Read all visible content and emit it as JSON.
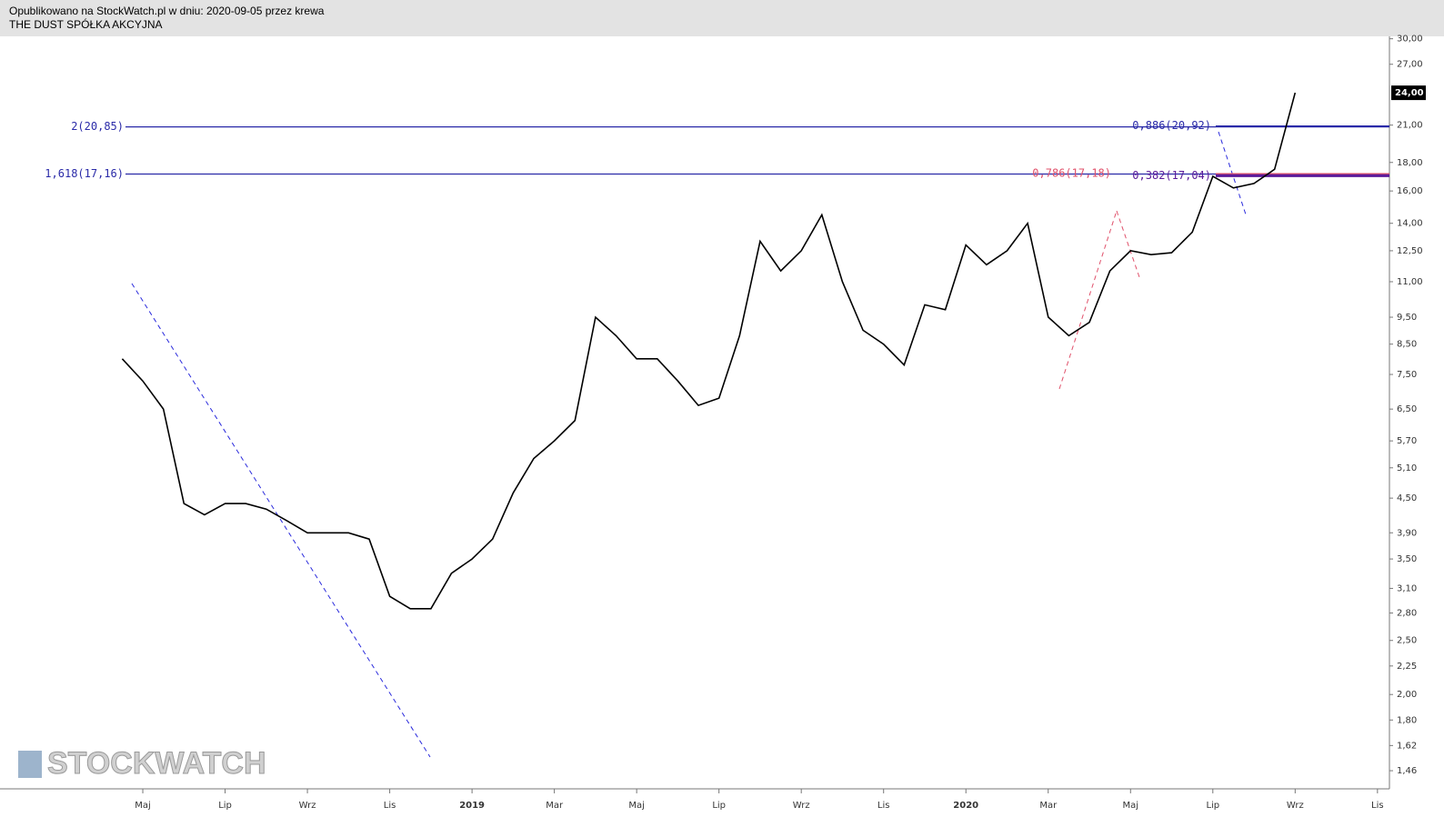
{
  "header": {
    "published": "Opublikowano na StockWatch.pl w dniu: 2020-09-05 przez krewa",
    "company": "THE DUST SPÓŁKA AKCYJNA"
  },
  "watermark": "STOCKWATCH",
  "chart_data": {
    "type": "line",
    "log_scale": true,
    "color": "#000000",
    "categories": [
      null,
      "Maj",
      null,
      null,
      null,
      "Lip",
      null,
      null,
      null,
      "Wrz",
      null,
      null,
      null,
      "Lis",
      null,
      null,
      null,
      "2019",
      null,
      null,
      null,
      "Mar",
      null,
      null,
      null,
      "Maj",
      null,
      null,
      null,
      "Lip",
      null,
      null,
      null,
      "Wrz",
      null,
      null,
      null,
      "Lis",
      null,
      null,
      null,
      "2020",
      null,
      null,
      null,
      "Mar",
      null,
      null,
      null,
      "Maj",
      null,
      null,
      null,
      "Lip",
      null,
      null,
      null,
      "Wrz",
      null,
      null,
      null,
      "Lis"
    ],
    "values": [
      8.0,
      7.3,
      6.5,
      4.4,
      4.2,
      4.4,
      4.4,
      4.3,
      4.1,
      3.9,
      3.9,
      3.9,
      3.8,
      3.0,
      2.85,
      2.85,
      3.3,
      3.5,
      3.8,
      4.6,
      5.3,
      5.7,
      6.2,
      9.5,
      8.8,
      8.0,
      8.0,
      7.3,
      6.6,
      6.8,
      8.8,
      13.0,
      11.5,
      12.5,
      14.5,
      11.0,
      9.0,
      8.5,
      7.8,
      10.0,
      9.8,
      12.8,
      11.8,
      12.5,
      14.0,
      9.5,
      8.8,
      9.3,
      11.5,
      12.5,
      12.3,
      12.4,
      13.5,
      17.0,
      16.2,
      16.5,
      17.5,
      24.0,
      null,
      null,
      null,
      null
    ],
    "ylim": [
      1.37,
      30.3
    ],
    "yticks": [
      {
        "value": 1.46,
        "label": "1,46"
      },
      {
        "value": 1.62,
        "label": "1,62"
      },
      {
        "value": 1.8,
        "label": "1,80"
      },
      {
        "value": 2,
        "label": "2,00"
      },
      {
        "value": 2.25,
        "label": "2,25"
      },
      {
        "value": 2.5,
        "label": "2,50"
      },
      {
        "value": 2.8,
        "label": "2,80"
      },
      {
        "value": 3.1,
        "label": "3,10"
      },
      {
        "value": 3.5,
        "label": "3,50"
      },
      {
        "value": 3.9,
        "label": "3,90"
      },
      {
        "value": 4.5,
        "label": "4,50"
      },
      {
        "value": 5.1,
        "label": "5,10"
      },
      {
        "value": 5.7,
        "label": "5,70"
      },
      {
        "value": 6.5,
        "label": "6,50"
      },
      {
        "value": 7.5,
        "label": "7,50"
      },
      {
        "value": 8.5,
        "label": "8,50"
      },
      {
        "value": 9.5,
        "label": "9,50"
      },
      {
        "value": 11,
        "label": "11,00"
      },
      {
        "value": 12.5,
        "label": "12,50"
      },
      {
        "value": 14,
        "label": "14,00"
      },
      {
        "value": 16,
        "label": "16,00"
      },
      {
        "value": 18,
        "label": "18,00"
      },
      {
        "value": 21,
        "label": "21,00"
      },
      {
        "value": 27,
        "label": "27,00"
      },
      {
        "value": 30,
        "label": "30,00"
      }
    ],
    "last_price": {
      "value": 24,
      "label": "24,00"
    },
    "levels": [
      {
        "label": "2(20,85)",
        "value": 20.85,
        "color": "#2a2aa8",
        "label_side": "left"
      },
      {
        "label": "1,618(17,16)",
        "value": 17.16,
        "color": "#2a2aa8",
        "label_side": "left"
      },
      {
        "label": "0,886(20,92)",
        "value": 20.92,
        "color": "#2a2aa8",
        "label_side": "right"
      },
      {
        "label": "0,786(17,18)",
        "value": 17.18,
        "color": "#e0506a",
        "label_side": "right"
      },
      {
        "label": "0,382(17,04)",
        "value": 17.04,
        "color": "#5a1a9a",
        "label_side": "right"
      }
    ]
  }
}
